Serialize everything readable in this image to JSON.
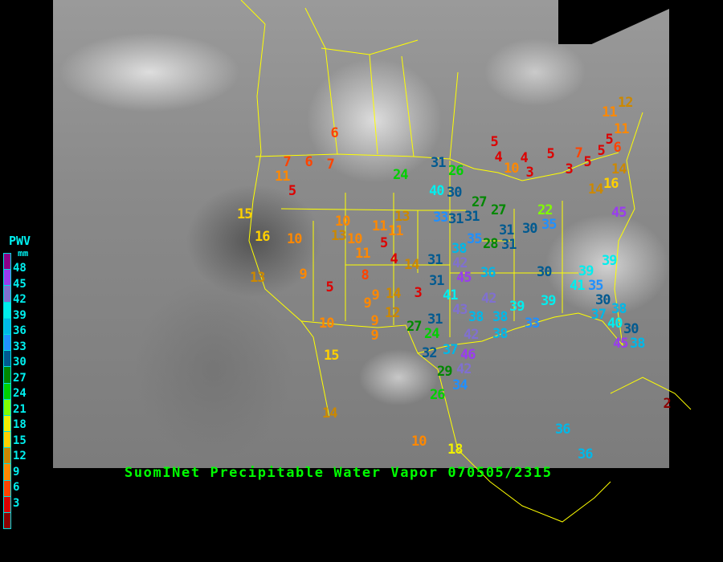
{
  "title": "SuomINet Precipitable Water Vapor 070505/2315",
  "legend": {
    "title": "PWV",
    "unit": "mm",
    "ticks": [
      "48",
      "45",
      "42",
      "39",
      "36",
      "33",
      "30",
      "27",
      "24",
      "21",
      "18",
      "15",
      "12",
      "9",
      "6",
      "3"
    ],
    "colors": [
      "#8b0088",
      "#9a3cf0",
      "#8070d0",
      "#00eeee",
      "#00b8e8",
      "#2090ff",
      "#005a90",
      "#008800",
      "#00d000",
      "#80ff00",
      "#f0f000",
      "#ffd000",
      "#cc8800",
      "#ff8800",
      "#ff4400",
      "#dd0000",
      "#8b0000"
    ]
  },
  "stations": [
    "6",
    "7",
    "6",
    "7",
    "11",
    "5",
    "15",
    "16",
    "10",
    "13",
    "9",
    "5",
    "10",
    "15",
    "14",
    "10",
    "18",
    "24",
    "31",
    "26",
    "40",
    "30",
    "10",
    "13",
    "10",
    "11",
    "11",
    "11",
    "13",
    "5",
    "4",
    "8",
    "14",
    "33",
    "31",
    "31",
    "27",
    "27",
    "9",
    "9",
    "14",
    "3",
    "12",
    "9",
    "9",
    "31",
    "42",
    "38",
    "35",
    "28",
    "31",
    "31",
    "30",
    "31",
    "45",
    "36",
    "41",
    "42",
    "43",
    "38",
    "38",
    "39",
    "30",
    "39",
    "31",
    "27",
    "24",
    "42",
    "38",
    "33",
    "32",
    "37",
    "46",
    "42",
    "29",
    "34",
    "26",
    "5",
    "4",
    "4",
    "5",
    "10",
    "3",
    "7",
    "5",
    "3",
    "5",
    "5",
    "6",
    "11",
    "12",
    "11",
    "14",
    "16",
    "14",
    "22",
    "35",
    "45",
    "39",
    "39",
    "41",
    "35",
    "30",
    "37",
    "38",
    "30",
    "40",
    "45",
    "38",
    "36",
    "36",
    "2"
  ]
}
